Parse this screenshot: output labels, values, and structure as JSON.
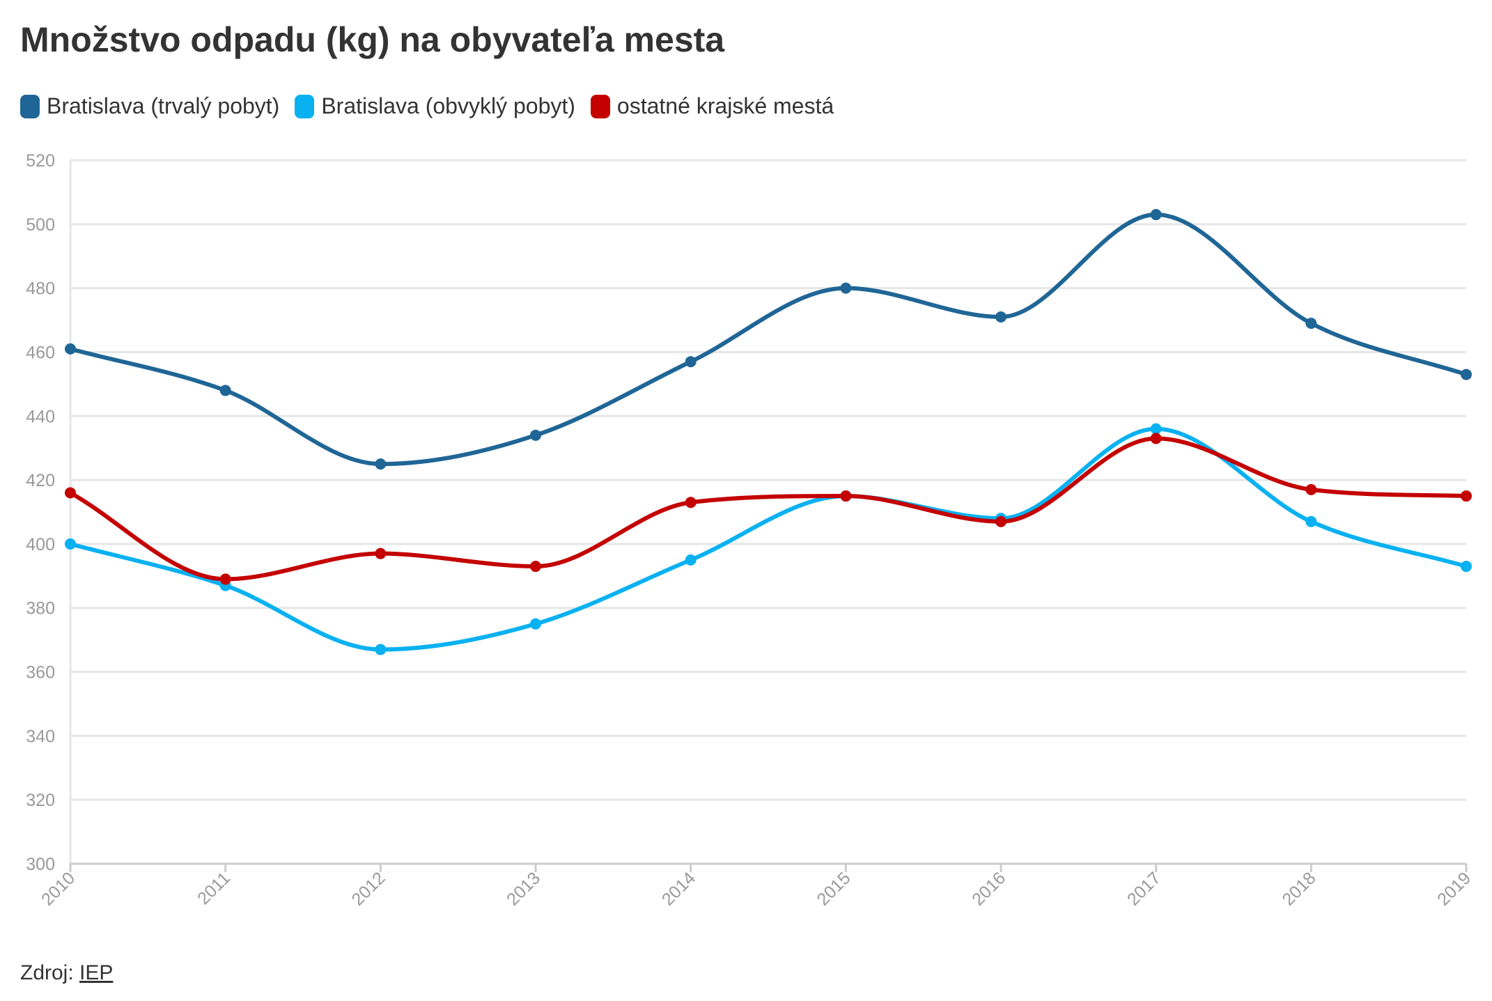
{
  "title": "Množstvo odpadu (kg) na obyvateľa mesta",
  "source": {
    "label": "Zdroj:",
    "link_text": "IEP"
  },
  "colors": {
    "grid": "#e6e6e6",
    "axis": "#cccccc",
    "tick_text": "#999999"
  },
  "chart_data": {
    "type": "line",
    "title": "Množstvo odpadu (kg) na obyvateľa mesta",
    "xlabel": "",
    "ylabel": "",
    "x": [
      "2010",
      "2011",
      "2012",
      "2013",
      "2014",
      "2015",
      "2016",
      "2017",
      "2018",
      "2019"
    ],
    "ylim": [
      300,
      520
    ],
    "yticks": [
      300,
      320,
      340,
      360,
      380,
      400,
      420,
      440,
      460,
      480,
      500,
      520
    ],
    "grid": true,
    "legend_position": "top-left",
    "series": [
      {
        "name": "Bratislava (trvalý pobyt)",
        "color": "#1f6696",
        "values": [
          461,
          448,
          425,
          434,
          457,
          480,
          471,
          503,
          469,
          453
        ]
      },
      {
        "name": "Bratislava (obvyklý pobyt)",
        "color": "#09b1f1",
        "values": [
          400,
          387,
          367,
          375,
          395,
          415,
          408,
          436,
          407,
          393
        ]
      },
      {
        "name": "ostatné krajské mestá",
        "color": "#c40000",
        "values": [
          416,
          389,
          397,
          393,
          413,
          415,
          407,
          433,
          417,
          415
        ]
      }
    ]
  }
}
